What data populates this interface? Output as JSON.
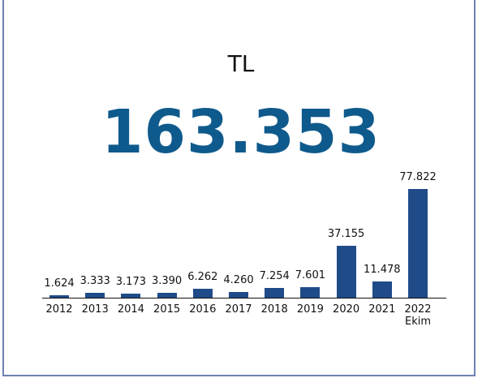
{
  "chart_data": {
    "type": "bar",
    "title": "TL",
    "subtitle": "163.353",
    "categories": [
      "2012",
      "2013",
      "2014",
      "2015",
      "2016",
      "2017",
      "2018",
      "2019",
      "2020",
      "2021",
      "2022 Ekim"
    ],
    "values": [
      1624,
      3333,
      3173,
      3390,
      6262,
      4260,
      7254,
      7601,
      37155,
      11478,
      77822
    ],
    "value_labels": [
      "1.624",
      "3.333",
      "3.173",
      "3.390",
      "6.262",
      "4.260",
      "7.254",
      "7.601",
      "37.155",
      "11.478",
      "77.822"
    ],
    "color": "#1f4b89"
  }
}
